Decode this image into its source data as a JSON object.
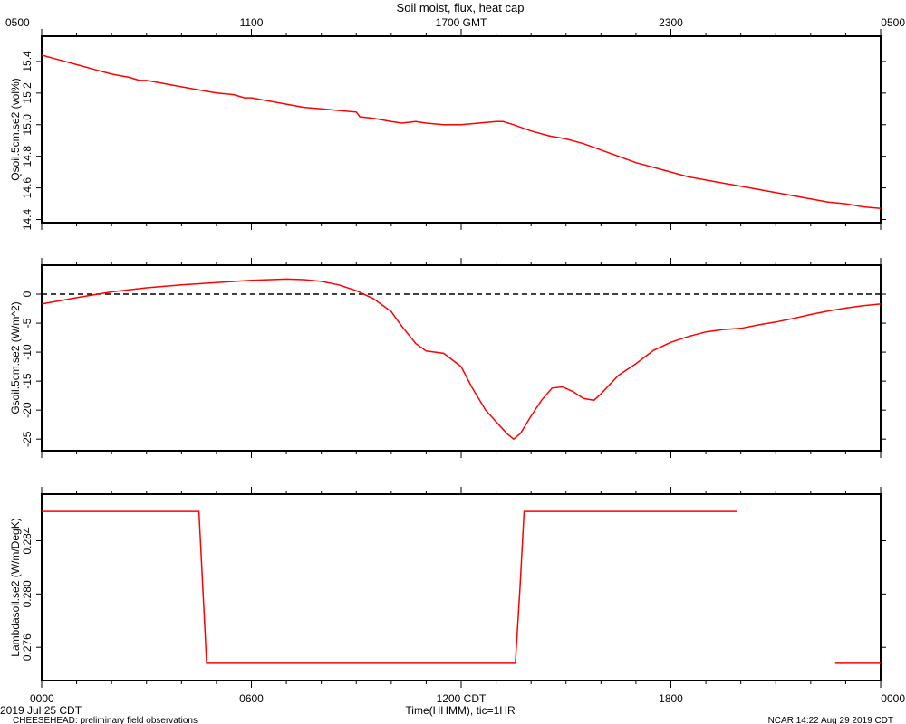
{
  "header": {
    "title": "Soil moist, flux, heat cap",
    "top_ticks": [
      "0500",
      "1100",
      "1700 GMT",
      "2300",
      "0500"
    ]
  },
  "footer": {
    "date_label": "2019 Jul 25 CDT",
    "project_label": "CHEESEHEAD: preliminary field observations",
    "xlabel": "Time(HHMM), tic=1HR",
    "credit": "NCAR 14:22 Aug 29 2019 CDT",
    "bottom_ticks": [
      "0000",
      "0600",
      "1200 CDT",
      "1800",
      "0000"
    ]
  },
  "colors": {
    "series": "#ff0000",
    "axes": "#000000",
    "zero_line": "#000000"
  },
  "chart_data": [
    {
      "type": "line",
      "ylabel": "Qsoil.5cm.se2 (vol%)",
      "ylim": [
        14.38,
        15.56
      ],
      "yticks": [
        "14.4",
        "14.6",
        "14.8",
        "15.0",
        "15.2",
        "15.4"
      ],
      "xlim": [
        0,
        24
      ],
      "grid": false,
      "series": [
        {
          "x": [
            0,
            0.5,
            1,
            1.5,
            2,
            2.5,
            2.8,
            3,
            3.5,
            4,
            4.5,
            5,
            5.5,
            5.8,
            6,
            6.5,
            7,
            7.5,
            8,
            8.5,
            9,
            9.1,
            9.5,
            10,
            10.3,
            10.7,
            11,
            11.5,
            12,
            12.5,
            13,
            13.2,
            13.5,
            14,
            14.5,
            15,
            15.5,
            16,
            16.5,
            17,
            17.5,
            18,
            18.5,
            19,
            19.5,
            20,
            20.5,
            21,
            21.5,
            22,
            22.5,
            23,
            23.5,
            24
          ],
          "values": [
            15.44,
            15.41,
            15.38,
            15.35,
            15.32,
            15.3,
            15.28,
            15.28,
            15.26,
            15.24,
            15.22,
            15.2,
            15.19,
            15.17,
            15.17,
            15.15,
            15.13,
            15.11,
            15.1,
            15.09,
            15.08,
            15.05,
            15.04,
            15.02,
            15.01,
            15.02,
            15.01,
            15.0,
            15.0,
            15.01,
            15.02,
            15.02,
            15.0,
            14.96,
            14.93,
            14.91,
            14.88,
            14.84,
            14.8,
            14.76,
            14.73,
            14.7,
            14.67,
            14.65,
            14.63,
            14.61,
            14.59,
            14.57,
            14.55,
            14.53,
            14.51,
            14.5,
            14.48,
            14.47
          ]
        }
      ]
    },
    {
      "type": "line",
      "ylabel": "Gsoil.5cm.se2 (W/m^2)",
      "ylim": [
        -27,
        5
      ],
      "yticks": [
        "-25",
        "-20",
        "-15",
        "-10",
        "-5",
        "0"
      ],
      "xlim": [
        0,
        24
      ],
      "reference_line": 0,
      "grid": false,
      "series": [
        {
          "x": [
            0,
            1,
            2,
            3,
            4,
            5,
            6,
            7,
            7.5,
            8,
            8.5,
            9,
            9.5,
            10,
            10.3,
            10.7,
            11,
            11.5,
            12,
            12.3,
            12.7,
            13,
            13.3,
            13.5,
            13.7,
            14,
            14.3,
            14.6,
            14.9,
            15.2,
            15.5,
            15.8,
            16,
            16.5,
            17,
            17.5,
            18,
            18.5,
            19,
            19.5,
            20,
            20.5,
            21,
            21.5,
            22,
            22.5,
            23,
            23.5,
            24
          ],
          "values": [
            -1.7,
            -0.6,
            0.4,
            1.1,
            1.6,
            2.0,
            2.4,
            2.6,
            2.5,
            2.2,
            1.6,
            0.6,
            -0.8,
            -3.0,
            -5.5,
            -8.5,
            -9.8,
            -10.2,
            -12.5,
            -16,
            -20,
            -22,
            -24,
            -25,
            -24,
            -21,
            -18.3,
            -16.2,
            -16,
            -16.8,
            -18,
            -18.3,
            -17.2,
            -14,
            -12,
            -9.7,
            -8.3,
            -7.3,
            -6.5,
            -6.1,
            -5.9,
            -5.3,
            -4.8,
            -4.2,
            -3.5,
            -2.9,
            -2.4,
            -2.0,
            -1.7
          ]
        }
      ]
    },
    {
      "type": "line",
      "ylabel": "Lambdasoil.se2 (W/m/DegK)",
      "ylim": [
        0.2735,
        0.2875
      ],
      "yticks": [
        "0.276",
        "0.280",
        "0.284"
      ],
      "xlim": [
        0,
        24
      ],
      "grid": false,
      "series": [
        {
          "segments": [
            {
              "x": [
                0,
                4.5,
                4.72,
                13.55,
                13.68,
                13.8,
                19.9
              ],
              "values": [
                0.2862,
                0.2862,
                0.2748,
                0.2748,
                0.2803,
                0.2862,
                0.2862
              ]
            },
            {
              "x": [
                22.7,
                24
              ],
              "values": [
                0.2748,
                0.2748
              ]
            }
          ]
        }
      ]
    }
  ]
}
